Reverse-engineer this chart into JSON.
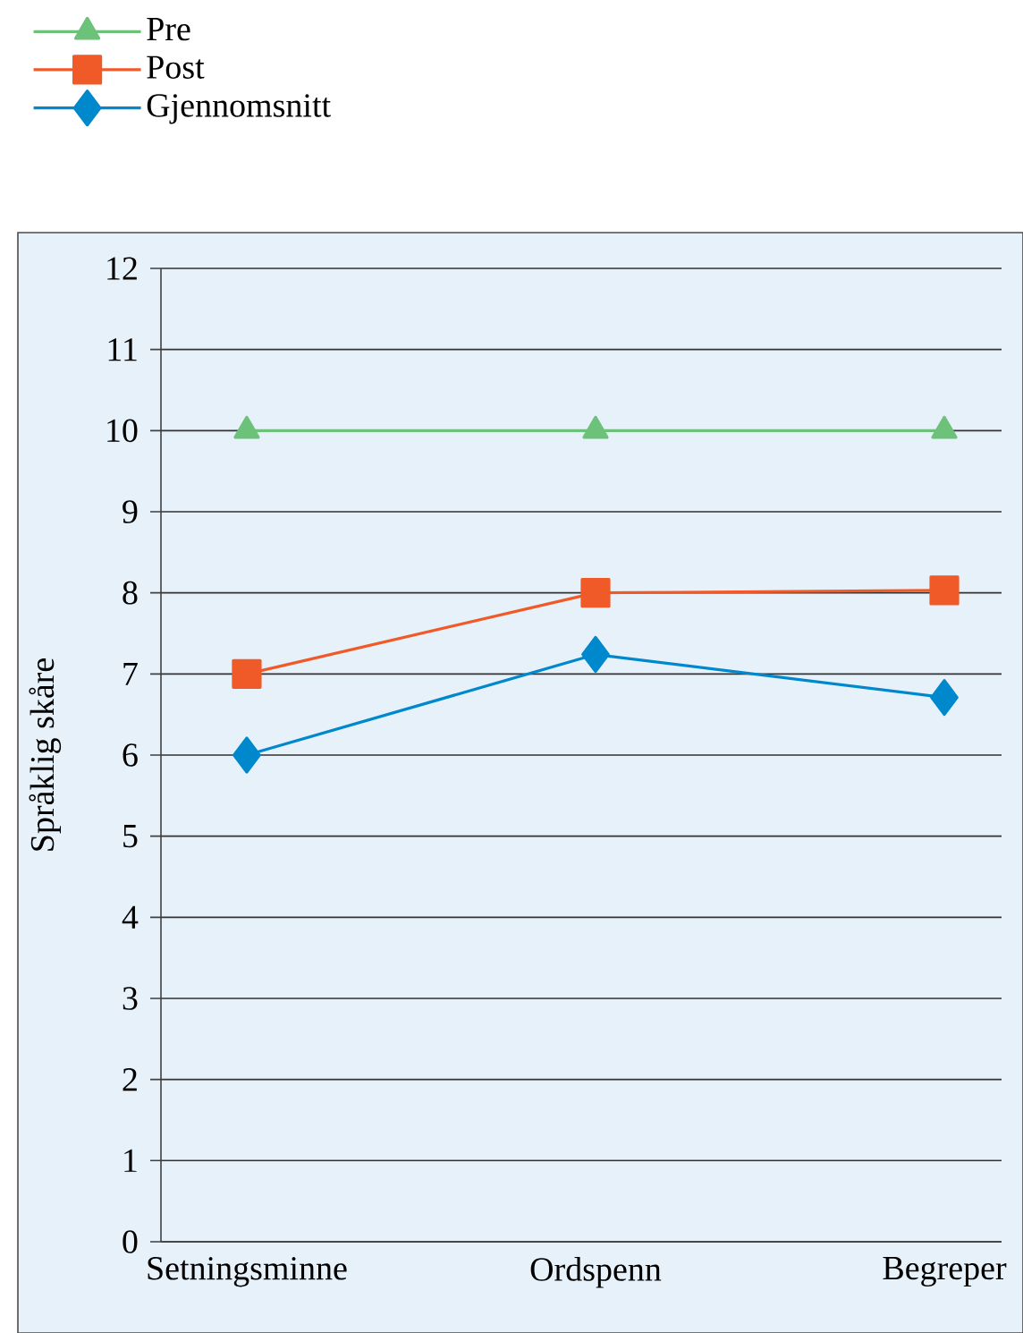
{
  "chart_data": {
    "type": "line",
    "ylabel": "Språklig skåre",
    "categories": [
      "Setningsminne",
      "Ordspenn",
      "Begreper"
    ],
    "series": [
      {
        "name": "Pre",
        "color": "#6dc27a",
        "marker": "triangle",
        "values": [
          10,
          10,
          10
        ]
      },
      {
        "name": "Post",
        "color": "#f05a28",
        "marker": "square",
        "values": [
          7,
          8,
          8.03
        ]
      },
      {
        "name": "Gjennomsnitt",
        "color": "#0088cc",
        "marker": "diamond",
        "values": [
          6,
          7.24,
          6.71
        ]
      }
    ],
    "ylim": [
      0,
      12
    ],
    "yticks": [
      0,
      1,
      2,
      3,
      4,
      5,
      6,
      7,
      8,
      9,
      10,
      11,
      12
    ],
    "grid": "y",
    "legend": "top left",
    "line_style": "solid"
  }
}
